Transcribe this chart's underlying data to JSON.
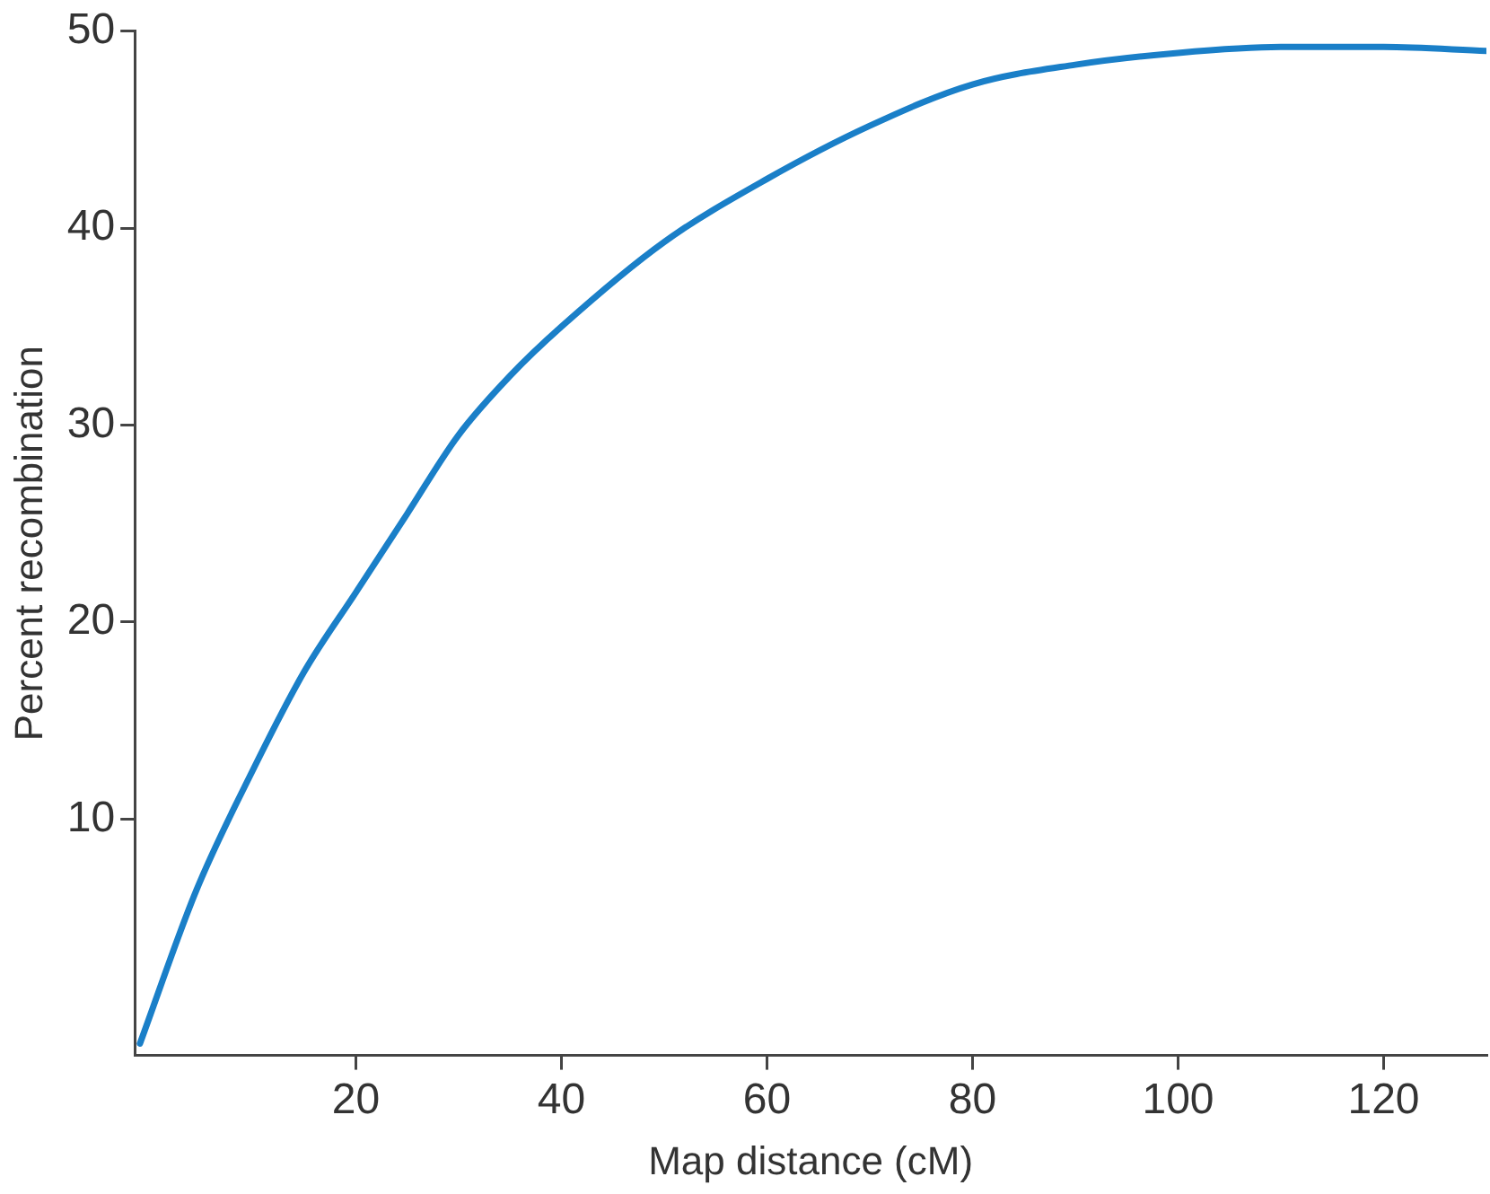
{
  "chart_data": {
    "type": "line",
    "xlabel": "Map distance (cM)",
    "ylabel": "Percent recombination",
    "x": [
      -1,
      4.5,
      10,
      15,
      20,
      25,
      30,
      35,
      40,
      50,
      60,
      70,
      80,
      90,
      100,
      110,
      120,
      130
    ],
    "series": [
      {
        "color": "#1a7fc8",
        "values": [
          -1.4,
          6.4,
          12.5,
          17.5,
          21.5,
          25.5,
          29.5,
          32.5,
          35,
          39.3,
          42.5,
          45.2,
          47.3,
          48.3,
          48.9,
          49.2,
          49.2,
          49
        ]
      }
    ],
    "xlim": [
      -1.5,
      130
    ],
    "xticks": [
      20,
      40,
      60,
      80,
      100,
      120
    ],
    "ylim": [
      -2,
      50
    ],
    "yticks": [
      10,
      20,
      30,
      40,
      50
    ],
    "grid": false,
    "legend": false,
    "marker": "none",
    "line_style": "solid"
  }
}
